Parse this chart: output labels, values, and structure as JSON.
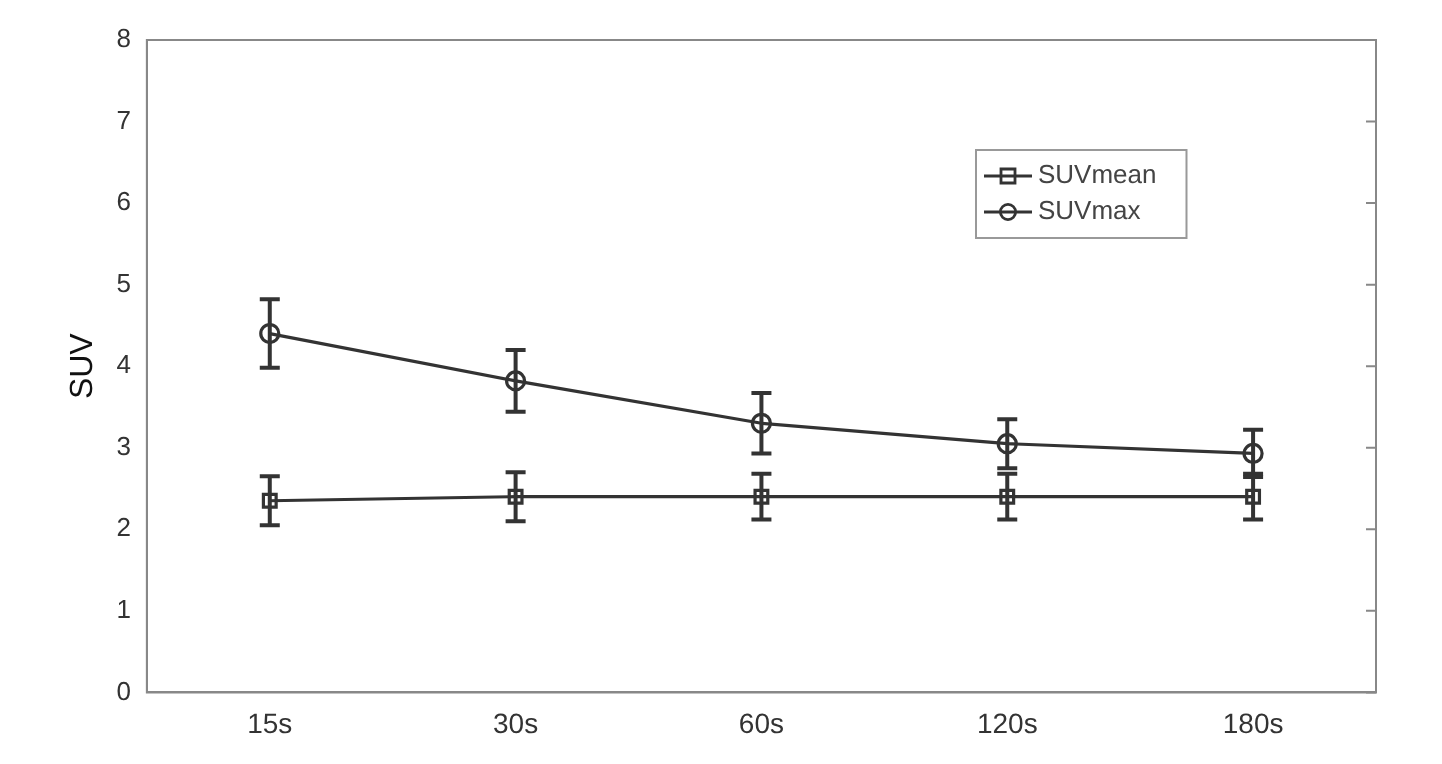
{
  "chart_data": {
    "type": "line",
    "ylabel": "SUV",
    "categories": [
      "15s",
      "30s",
      "60s",
      "120s",
      "180s"
    ],
    "ylim": [
      0,
      8
    ],
    "yticks": [
      0,
      1,
      2,
      3,
      4,
      5,
      6,
      7,
      8
    ],
    "grid": false,
    "legend": "top right",
    "series": [
      {
        "name": "SUVmean",
        "color": "#333333",
        "marker": "square",
        "values": [
          2.35,
          2.4,
          2.4,
          2.4,
          2.4
        ],
        "errors": [
          0.3,
          0.3,
          0.28,
          0.28,
          0.28
        ]
      },
      {
        "name": "SUVmax",
        "color": "#333333",
        "marker": "circle",
        "values": [
          4.4,
          3.82,
          3.3,
          3.05,
          2.93
        ],
        "errors": [
          0.42,
          0.38,
          0.37,
          0.3,
          0.29
        ]
      }
    ]
  }
}
